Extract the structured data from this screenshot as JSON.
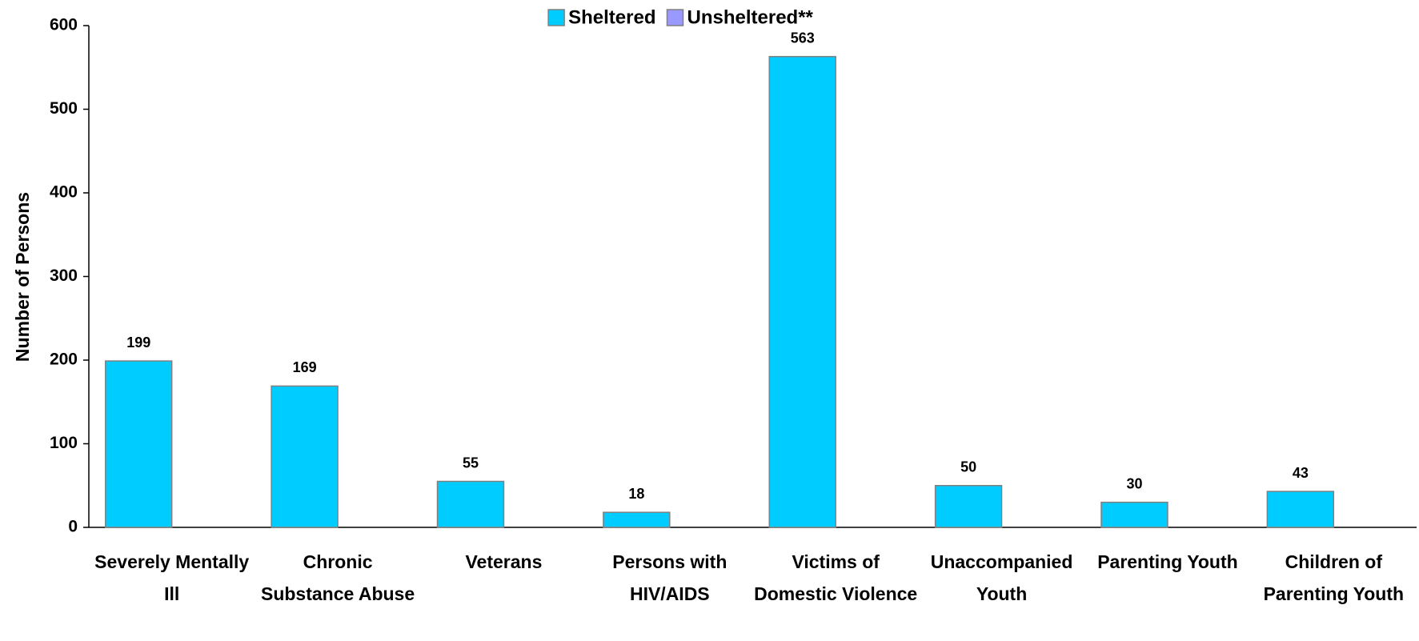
{
  "chart_data": {
    "type": "bar",
    "y_label": "Number of Persons",
    "categories": [
      "Severely Mentally Ill",
      "Chronic Substance Abuse",
      "Veterans",
      "Persons with HIV/AIDS",
      "Victims of Domestic Violence",
      "Unaccompanied Youth",
      "Parenting Youth",
      "Children of Parenting Youth"
    ],
    "series": [
      {
        "name": "Sheltered",
        "color": "#00ccff",
        "values": [
          199,
          169,
          55,
          18,
          563,
          50,
          30,
          43
        ]
      },
      {
        "name": "Unsheltered**",
        "color": "#9999ff",
        "values": [
          null,
          null,
          null,
          null,
          null,
          null,
          null,
          null
        ]
      }
    ],
    "ylim": [
      0,
      600
    ],
    "yticks": [
      0,
      100,
      200,
      300,
      400,
      500,
      600
    ],
    "grid": false,
    "legend": "top"
  }
}
